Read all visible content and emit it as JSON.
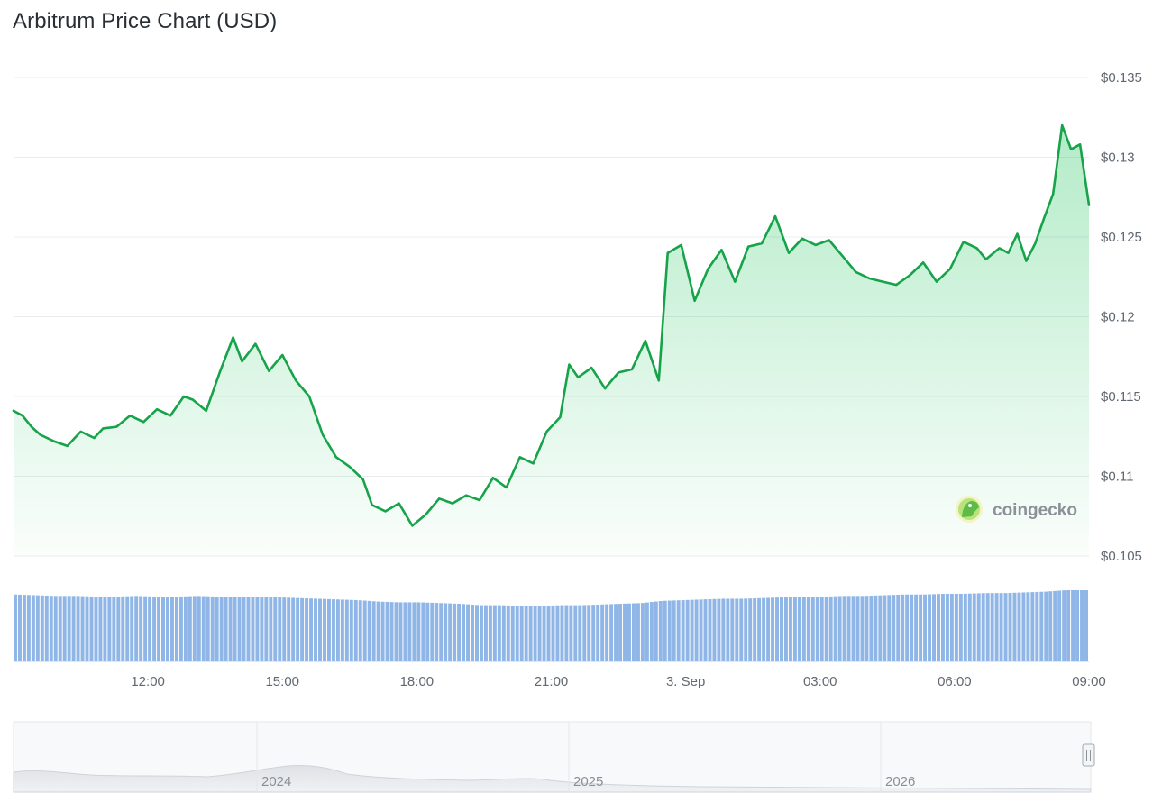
{
  "title": "Arbitrum Price Chart (USD)",
  "brand": {
    "name": "coingecko",
    "logo_icon": "coingecko-logo-icon"
  },
  "colors": {
    "line": "#16a34a",
    "fill": "#22c55e",
    "volume": "#8fb6e6",
    "grid": "#e9ecef"
  },
  "chart_data": {
    "type": "line",
    "title": "Arbitrum Price Chart (USD)",
    "xlabel": "",
    "ylabel": "",
    "ylim": [
      0.105,
      0.135
    ],
    "yticks": [
      "$0.135",
      "$0.13",
      "$0.125",
      "$0.12",
      "$0.115",
      "$0.11",
      "$0.105"
    ],
    "ytick_values": [
      0.135,
      0.13,
      0.125,
      0.12,
      0.115,
      0.11,
      0.105
    ],
    "xlim": [
      "2 Sep 09:00",
      "3 Sep 09:00"
    ],
    "xticks": [
      {
        "label": "12:00",
        "hours": 3
      },
      {
        "label": "15:00",
        "hours": 6
      },
      {
        "label": "18:00",
        "hours": 9
      },
      {
        "label": "21:00",
        "hours": 12
      },
      {
        "label": "3. Sep",
        "hours": 15
      },
      {
        "label": "03:00",
        "hours": 18
      },
      {
        "label": "06:00",
        "hours": 21
      },
      {
        "label": "09:00",
        "hours": 24
      }
    ],
    "grid": true,
    "series": [
      {
        "x_hours": [
          0,
          0.2,
          0.4,
          0.6,
          0.9,
          1.2,
          1.5,
          1.8,
          2.0,
          2.3,
          2.6,
          2.9,
          3.2,
          3.5,
          3.8,
          4.0,
          4.3,
          4.6,
          4.9,
          5.1,
          5.4,
          5.7,
          6.0,
          6.3,
          6.6,
          6.9,
          7.2,
          7.5,
          7.8,
          8.0,
          8.3,
          8.6,
          8.9,
          9.2,
          9.5,
          9.8,
          10.1,
          10.4,
          10.7,
          11.0,
          11.3,
          11.6,
          11.9,
          12.2,
          12.4,
          12.6,
          12.9,
          13.2,
          13.5,
          13.8,
          14.1,
          14.4,
          14.6,
          14.9,
          15.2,
          15.5,
          15.8,
          16.1,
          16.4,
          16.7,
          17.0,
          17.3,
          17.6,
          17.9,
          18.2,
          18.5,
          18.8,
          19.1,
          19.4,
          19.7,
          20.0,
          20.3,
          20.6,
          20.9,
          21.2,
          21.5,
          21.7,
          22.0,
          22.2,
          22.4,
          22.6,
          22.8,
          23.0,
          23.2,
          23.4,
          23.6,
          23.8,
          24.0
        ],
        "values": [
          0.1141,
          0.1138,
          0.1131,
          0.1126,
          0.1122,
          0.1119,
          0.1128,
          0.1124,
          0.113,
          0.1131,
          0.1138,
          0.1134,
          0.1142,
          0.1138,
          0.115,
          0.1148,
          0.1141,
          0.1165,
          0.1187,
          0.1172,
          0.1183,
          0.1166,
          0.1176,
          0.116,
          0.115,
          0.1126,
          0.1112,
          0.1106,
          0.1098,
          0.1082,
          0.1078,
          0.1083,
          0.1069,
          0.1076,
          0.1086,
          0.1083,
          0.1088,
          0.1085,
          0.1099,
          0.1093,
          0.1112,
          0.1108,
          0.1128,
          0.1137,
          0.117,
          0.1162,
          0.1168,
          0.1155,
          0.1165,
          0.1167,
          0.1185,
          0.116,
          0.124,
          0.1245,
          0.121,
          0.123,
          0.1242,
          0.1222,
          0.1244,
          0.1246,
          0.1263,
          0.124,
          0.1249,
          0.1245,
          0.1248,
          0.1238,
          0.1228,
          0.1224,
          0.1222,
          0.122,
          0.1226,
          0.1234,
          0.1222,
          0.123,
          0.1247,
          0.1243,
          0.1236,
          0.1243,
          0.124,
          0.1252,
          0.1235,
          0.1246,
          0.1262,
          0.1277,
          0.132,
          0.1305,
          0.1308,
          0.127
        ]
      }
    ],
    "volume_relative": [
      0.94,
      0.93,
      0.92,
      0.92,
      0.91,
      0.91,
      0.92,
      0.91,
      0.91,
      0.92,
      0.91,
      0.91,
      0.9,
      0.9,
      0.89,
      0.88,
      0.87,
      0.86,
      0.84,
      0.83,
      0.83,
      0.82,
      0.81,
      0.79,
      0.79,
      0.78,
      0.78,
      0.79,
      0.79,
      0.8,
      0.81,
      0.82,
      0.85,
      0.86,
      0.87,
      0.88,
      0.88,
      0.89,
      0.9,
      0.9,
      0.91,
      0.92,
      0.92,
      0.93,
      0.94,
      0.94,
      0.95,
      0.95,
      0.96,
      0.96,
      0.97,
      0.98,
      1.0,
      1.0
    ]
  },
  "navigator": {
    "years": [
      "2024",
      "2025",
      "2026"
    ]
  }
}
